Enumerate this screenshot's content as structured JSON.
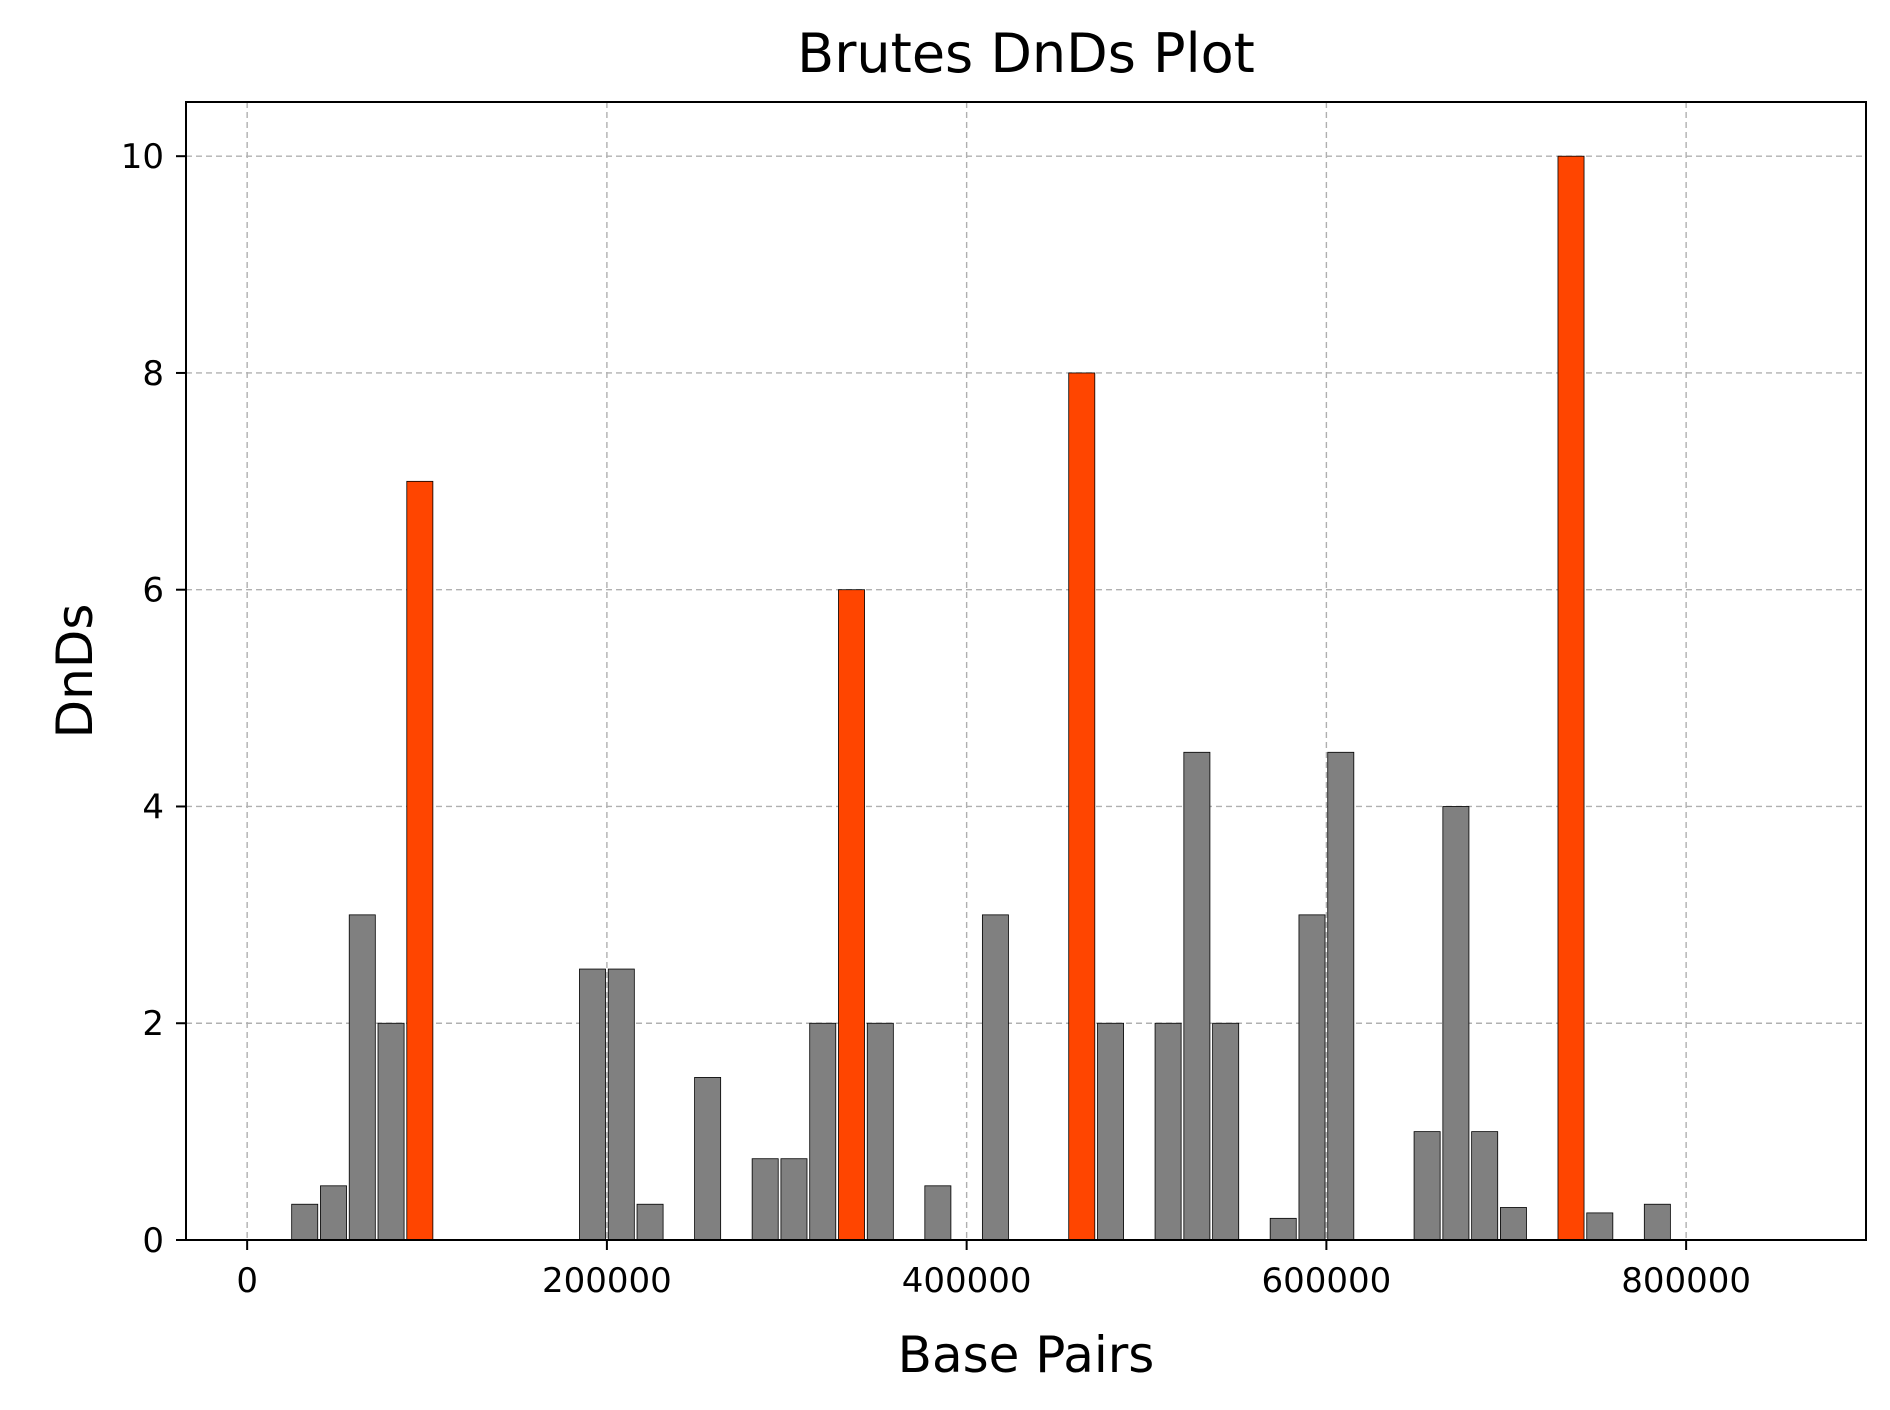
{
  "chart_data": {
    "type": "bar",
    "title": "Brutes DnDs Plot",
    "xlabel": "Base Pairs",
    "ylabel": "DnDs",
    "xlim": [
      -34000,
      900000
    ],
    "ylim": [
      0,
      10.5
    ],
    "xticks": [
      0,
      200000,
      400000,
      600000,
      800000
    ],
    "xtick_labels": [
      "0",
      "200000",
      "400000",
      "600000",
      "800000"
    ],
    "yticks": [
      0,
      2,
      4,
      6,
      8,
      10
    ],
    "ytick_labels": [
      "0",
      "2",
      "4",
      "6",
      "8",
      "10"
    ],
    "grid": true,
    "bar_width": 14500,
    "colors": {
      "normal": "#808080",
      "highlight": "#ff4500"
    },
    "bars": [
      {
        "x": 32000,
        "value": 0.33,
        "highlight": false
      },
      {
        "x": 48000,
        "value": 0.5,
        "highlight": false
      },
      {
        "x": 64000,
        "value": 3.0,
        "highlight": false
      },
      {
        "x": 80000,
        "value": 2.0,
        "highlight": false
      },
      {
        "x": 96000,
        "value": 7.0,
        "highlight": true
      },
      {
        "x": 192000,
        "value": 2.5,
        "highlight": false
      },
      {
        "x": 208000,
        "value": 2.5,
        "highlight": false
      },
      {
        "x": 224000,
        "value": 0.33,
        "highlight": false
      },
      {
        "x": 256000,
        "value": 1.5,
        "highlight": false
      },
      {
        "x": 288000,
        "value": 0.75,
        "highlight": false
      },
      {
        "x": 304000,
        "value": 0.75,
        "highlight": false
      },
      {
        "x": 320000,
        "value": 2.0,
        "highlight": false
      },
      {
        "x": 336000,
        "value": 6.0,
        "highlight": true
      },
      {
        "x": 352000,
        "value": 2.0,
        "highlight": false
      },
      {
        "x": 384000,
        "value": 0.5,
        "highlight": false
      },
      {
        "x": 416000,
        "value": 3.0,
        "highlight": false
      },
      {
        "x": 464000,
        "value": 8.0,
        "highlight": true
      },
      {
        "x": 480000,
        "value": 2.0,
        "highlight": false
      },
      {
        "x": 512000,
        "value": 2.0,
        "highlight": false
      },
      {
        "x": 528000,
        "value": 4.5,
        "highlight": false
      },
      {
        "x": 544000,
        "value": 2.0,
        "highlight": false
      },
      {
        "x": 576000,
        "value": 0.2,
        "highlight": false
      },
      {
        "x": 592000,
        "value": 3.0,
        "highlight": false
      },
      {
        "x": 608000,
        "value": 4.5,
        "highlight": false
      },
      {
        "x": 656000,
        "value": 1.0,
        "highlight": false
      },
      {
        "x": 672000,
        "value": 4.0,
        "highlight": false
      },
      {
        "x": 688000,
        "value": 1.0,
        "highlight": false
      },
      {
        "x": 704000,
        "value": 0.3,
        "highlight": false
      },
      {
        "x": 736000,
        "value": 10.0,
        "highlight": true
      },
      {
        "x": 752000,
        "value": 0.25,
        "highlight": false
      },
      {
        "x": 784000,
        "value": 0.33,
        "highlight": false
      }
    ]
  }
}
